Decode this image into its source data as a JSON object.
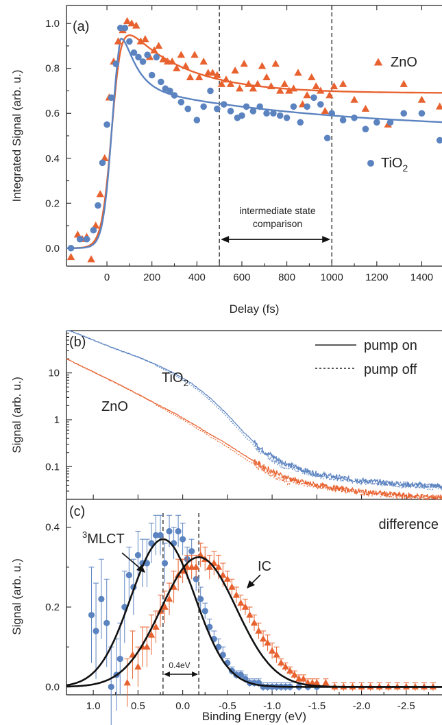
{
  "colors": {
    "ZnO": "#e8622f",
    "TiO2": "#5b83c0",
    "fit": "#111111"
  },
  "chart_data": [
    {
      "panel": "(a)",
      "type": "scatter",
      "xlabel": "Delay (fs)",
      "ylabel": "Integrated Signal (arb. u.)",
      "xlim": [
        -180,
        1490
      ],
      "ylim": [
        -0.08,
        1.08
      ],
      "xticks": [
        0,
        200,
        400,
        600,
        800,
        1000,
        1200,
        1400
      ],
      "yticks": [
        0.0,
        0.2,
        0.4,
        0.6,
        0.8,
        1.0
      ],
      "ytick_labels": [
        "0.0",
        "0.2",
        "0.4",
        "0.6",
        "0.8",
        "1.0"
      ],
      "legend": {
        "ZnO": "ZnO",
        "TiO2_main": "TiO",
        "TiO2_sub": "2"
      },
      "annotation": {
        "line1": "intermediate state",
        "line2": "comparison",
        "x_from": 500,
        "x_to": 1000
      },
      "vlines": [
        500,
        1000
      ],
      "series": [
        {
          "name": "ZnO",
          "marker": "triangle",
          "x": [
            -160,
            -130,
            -110,
            -90,
            -70,
            -50,
            -30,
            -10,
            10,
            30,
            50,
            70,
            90,
            110,
            130,
            150,
            170,
            190,
            210,
            230,
            250,
            270,
            290,
            310,
            330,
            350,
            370,
            390,
            410,
            430,
            450,
            470,
            490,
            510,
            530,
            550,
            570,
            590,
            610,
            630,
            650,
            670,
            690,
            710,
            730,
            750,
            770,
            790,
            810,
            830,
            850,
            870,
            890,
            910,
            930,
            950,
            970,
            990,
            1010,
            1050,
            1100,
            1150,
            1250,
            1320,
            1400,
            1480
          ],
          "y": [
            -0.04,
            0.06,
            0.04,
            0.05,
            -0.05,
            0.1,
            0.24,
            0.4,
            0.67,
            0.83,
            0.92,
            0.97,
            1.01,
            1.0,
            0.99,
            0.92,
            0.93,
            0.85,
            0.88,
            0.9,
            0.84,
            0.83,
            0.83,
            0.8,
            0.86,
            0.81,
            0.76,
            0.86,
            0.76,
            0.83,
            0.78,
            0.78,
            0.77,
            0.73,
            0.75,
            0.73,
            0.79,
            0.71,
            0.82,
            0.73,
            0.71,
            0.73,
            0.81,
            0.76,
            0.72,
            0.82,
            0.7,
            0.73,
            0.7,
            0.71,
            0.78,
            0.64,
            0.68,
            0.76,
            0.72,
            0.7,
            0.61,
            0.68,
            0.72,
            0.73,
            0.66,
            0.62,
            0.55,
            0.73,
            0.66,
            0.63
          ]
        },
        {
          "name": "TiO2",
          "marker": "circle",
          "x": [
            -160,
            -120,
            -90,
            -60,
            -40,
            -20,
            0,
            20,
            40,
            60,
            80,
            100,
            120,
            140,
            160,
            180,
            200,
            220,
            240,
            260,
            280,
            300,
            330,
            360,
            400,
            430,
            460,
            490,
            520,
            550,
            580,
            600,
            620,
            650,
            680,
            710,
            740,
            770,
            800,
            830,
            860,
            890,
            920,
            950,
            980,
            1000,
            1050,
            1100,
            1150,
            1200,
            1260,
            1320,
            1400,
            1480
          ],
          "y": [
            0.0,
            0.04,
            0.04,
            0.08,
            0.19,
            0.38,
            0.55,
            0.67,
            0.82,
            0.98,
            0.98,
            0.92,
            0.87,
            0.85,
            0.83,
            0.86,
            0.77,
            0.85,
            0.74,
            0.71,
            0.7,
            0.68,
            0.65,
            0.62,
            0.57,
            0.63,
            0.7,
            0.62,
            0.64,
            0.61,
            0.58,
            0.59,
            0.63,
            0.61,
            0.63,
            0.6,
            0.6,
            0.59,
            0.58,
            0.63,
            0.56,
            0.63,
            0.67,
            0.64,
            0.49,
            0.6,
            0.57,
            0.58,
            0.53,
            0.56,
            0.56,
            0.6,
            0.6,
            0.48
          ]
        }
      ]
    },
    {
      "panel": "(b)",
      "type": "line",
      "yscale": "log",
      "ylabel": "Signal (arb. u.)",
      "ylim": [
        0.02,
        80
      ],
      "yticks": [
        0.1,
        1,
        10
      ],
      "ytick_labels": [
        "0.1",
        "1",
        "10"
      ],
      "legend": {
        "solid": "pump on",
        "dashed": "pump off"
      },
      "labels": {
        "TiO2_main": "TiO",
        "TiO2_sub": "2",
        "ZnO": "ZnO"
      },
      "series": [
        {
          "name": "TiO2",
          "x": [
            1.3,
            1.1,
            0.9,
            0.7,
            0.5,
            0.3,
            0.1,
            -0.1,
            -0.3,
            -0.5,
            -0.7,
            -0.9,
            -1.1,
            -1.3,
            -1.5,
            -1.7,
            -1.9,
            -2.1,
            -2.3,
            -2.5,
            -2.7,
            -2.9
          ],
          "y": [
            85,
            60,
            42,
            30,
            22,
            15,
            10,
            6,
            3,
            1.3,
            0.5,
            0.22,
            0.13,
            0.09,
            0.07,
            0.06,
            0.053,
            0.048,
            0.045,
            0.042,
            0.04,
            0.038
          ]
        },
        {
          "name": "ZnO",
          "x": [
            1.3,
            1.1,
            0.9,
            0.7,
            0.5,
            0.3,
            0.1,
            -0.1,
            -0.3,
            -0.5,
            -0.7,
            -0.9,
            -1.1,
            -1.3,
            -1.5,
            -1.7,
            -1.9,
            -2.1,
            -2.3,
            -2.5,
            -2.7,
            -2.9
          ],
          "y": [
            20,
            13,
            8.5,
            5.5,
            3.5,
            2.2,
            1.4,
            0.85,
            0.5,
            0.3,
            0.17,
            0.1,
            0.065,
            0.048,
            0.04,
            0.035,
            0.031,
            0.028,
            0.026,
            0.024,
            0.023,
            0.022
          ]
        }
      ]
    },
    {
      "panel": "(c)",
      "type": "scatter",
      "xlabel": "Binding Energy (eV)",
      "ylabel": "Signal (arb. u.)",
      "xlim": [
        1.3,
        -2.9
      ],
      "ylim": [
        -0.02,
        0.47
      ],
      "xticks": [
        1.0,
        0.5,
        0.0,
        -0.5,
        -1.0,
        -1.5,
        -2.0,
        -2.5
      ],
      "xtick_labels": [
        "1.0",
        "0.5",
        "0.0",
        "-0.5",
        "-1.0",
        "-1.5",
        "-2.0",
        "-2.5"
      ],
      "yticks": [
        0.0,
        0.2,
        0.4
      ],
      "ytick_labels": [
        "0.0",
        "0.2",
        "0.4"
      ],
      "annotations": {
        "difference": "difference",
        "mlct_sup": "3",
        "mlct": "MLCT",
        "ic": "IC",
        "gap": "0.4eV"
      },
      "vlines": [
        0.22,
        -0.18
      ],
      "fits": [
        {
          "name": "3MLCT",
          "center": 0.22,
          "amplitude": 0.37,
          "sigma": 0.36
        },
        {
          "name": "IC",
          "center": -0.18,
          "amplitude": 0.325,
          "sigma": 0.42
        }
      ],
      "series": [
        {
          "name": "TiO2",
          "x": [
            1.02,
            0.97,
            0.91,
            0.85,
            0.8,
            0.74,
            0.7,
            0.65,
            0.6,
            0.55,
            0.5,
            0.45,
            0.4,
            0.35,
            0.3,
            0.25,
            0.2,
            0.15,
            0.1,
            0.05,
            0.0,
            -0.05,
            -0.1,
            -0.15,
            -0.2,
            -0.25,
            -0.3,
            -0.35,
            -0.4,
            -0.45,
            -0.5,
            -0.55,
            -0.6,
            -0.65,
            -0.7,
            -0.75,
            -0.8,
            -0.85,
            -0.9,
            -0.95,
            -1.0,
            -1.05,
            -1.1,
            -1.15,
            -1.2,
            -1.3,
            -1.4,
            -1.5
          ],
          "y": [
            0.18,
            0.14,
            0.22,
            0.16,
            0.0,
            0.03,
            0.07,
            0.2,
            0.28,
            0.25,
            0.33,
            0.31,
            0.31,
            0.36,
            0.38,
            0.38,
            0.31,
            0.39,
            0.36,
            0.39,
            0.37,
            0.32,
            0.34,
            0.27,
            0.22,
            0.19,
            0.15,
            0.12,
            0.1,
            0.08,
            0.06,
            0.04,
            0.03,
            0.03,
            0.02,
            0.01,
            0.01,
            0.01,
            0.0,
            0.0,
            0.0,
            0.0,
            0.0,
            0.0,
            0.0,
            0.0,
            0.0,
            0.0
          ],
          "err": [
            0.12,
            0.12,
            0.1,
            0.11,
            0.1,
            0.09,
            0.09,
            0.09,
            0.07,
            0.07,
            0.06,
            0.06,
            0.06,
            0.05,
            0.05,
            0.05,
            0.05,
            0.04,
            0.04,
            0.04,
            0.04,
            0.03,
            0.03,
            0.03,
            0.03,
            0.02,
            0.02,
            0.02,
            0.02,
            0.02,
            0.01,
            0.01,
            0.01,
            0.01,
            0.01,
            0.01,
            0.01,
            0.01,
            0.01,
            0.01,
            0.01,
            0.01,
            0.01,
            0.01,
            0.01,
            0.01,
            0.01,
            0.01
          ]
        },
        {
          "name": "ZnO",
          "x": [
            0.62,
            0.56,
            0.5,
            0.45,
            0.4,
            0.35,
            0.3,
            0.25,
            0.2,
            0.15,
            0.1,
            0.05,
            0.0,
            -0.05,
            -0.1,
            -0.15,
            -0.2,
            -0.25,
            -0.3,
            -0.35,
            -0.4,
            -0.45,
            -0.5,
            -0.55,
            -0.6,
            -0.65,
            -0.7,
            -0.75,
            -0.8,
            -0.85,
            -0.9,
            -0.95,
            -1.0,
            -1.05,
            -1.1,
            -1.15,
            -1.2,
            -1.25,
            -1.3,
            -1.35,
            -1.4,
            -1.45,
            -1.5,
            -1.6,
            -1.7,
            -1.8,
            -1.9,
            -2.0,
            -2.1,
            -2.2,
            -2.3,
            -2.4,
            -2.5,
            -2.6,
            -2.7,
            -2.8
          ],
          "y": [
            0.01,
            0.08,
            0.05,
            0.1,
            0.1,
            0.13,
            0.15,
            0.19,
            0.2,
            0.22,
            0.25,
            0.28,
            0.29,
            0.3,
            0.3,
            0.3,
            0.33,
            0.32,
            0.3,
            0.31,
            0.3,
            0.28,
            0.27,
            0.25,
            0.23,
            0.21,
            0.2,
            0.18,
            0.16,
            0.14,
            0.12,
            0.11,
            0.09,
            0.08,
            0.06,
            0.05,
            0.04,
            0.03,
            0.02,
            0.02,
            0.01,
            0.01,
            0.01,
            0.01,
            0.0,
            0.0,
            0.0,
            0.0,
            0.0,
            0.0,
            0.0,
            0.0,
            0.0,
            0.0,
            0.0,
            0.0
          ],
          "err": [
            0.06,
            0.06,
            0.05,
            0.05,
            0.05,
            0.05,
            0.04,
            0.04,
            0.04,
            0.04,
            0.04,
            0.04,
            0.03,
            0.03,
            0.03,
            0.03,
            0.03,
            0.03,
            0.03,
            0.03,
            0.03,
            0.03,
            0.02,
            0.02,
            0.02,
            0.02,
            0.02,
            0.02,
            0.02,
            0.02,
            0.02,
            0.02,
            0.02,
            0.02,
            0.01,
            0.01,
            0.01,
            0.01,
            0.01,
            0.01,
            0.01,
            0.01,
            0.01,
            0.01,
            0.01,
            0.01,
            0.01,
            0.01,
            0.01,
            0.01,
            0.01,
            0.01,
            0.01,
            0.01,
            0.01,
            0.01
          ]
        }
      ]
    }
  ]
}
